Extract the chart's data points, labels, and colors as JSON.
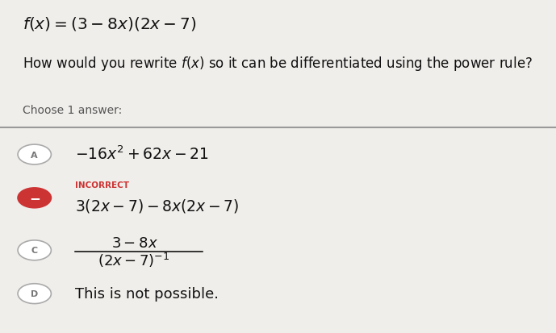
{
  "bg_color": "#f0eeeb",
  "title_math": "$f(x) = (3 - 8x)(2x - 7)$",
  "question_plain": "How would you rewrite ",
  "question_fx": "$f(x)$",
  "question_rest": " so it can be differentiated using the power rule?",
  "choose_text": "Choose 1 answer:",
  "divider_color": "#999999",
  "opt_a_math": "$-16x^2 + 62x - 21$",
  "opt_b_incorrect": "INCORRECT",
  "opt_b_math": "$3(2x-7) - 8x(2x-7)$",
  "opt_c_num": "$3-8x$",
  "opt_c_den": "$(2x-7)^{-1}$",
  "opt_d_text": "This is not possible.",
  "circle_edge": "#aaaaaa",
  "circle_label_color": "#777777",
  "incorrect_color": "#cc3333",
  "text_color": "#111111"
}
